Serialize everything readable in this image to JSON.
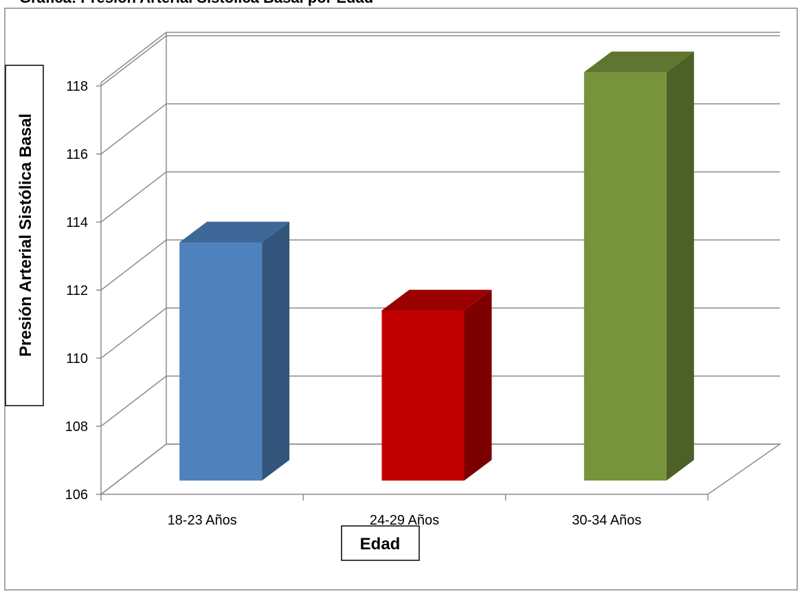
{
  "chart_data": {
    "type": "bar",
    "title": "Gráfica: Presión Arterial Sistólica Basal por Edad",
    "xlabel": "Edad",
    "ylabel": "Presión Arterial Sistólica Basal",
    "categories": [
      "18-23 Años",
      "24-29 Años",
      "30-34 Años"
    ],
    "values": [
      113.0,
      111.0,
      118.0
    ],
    "ylim": [
      106,
      118
    ],
    "yticks": [
      "106",
      "108",
      "110",
      "112",
      "114",
      "116",
      "118"
    ],
    "colors": [
      "#4F81BD",
      "#C00000",
      "#77933C"
    ],
    "grid": true,
    "legend": "none",
    "style": "3d-column"
  }
}
